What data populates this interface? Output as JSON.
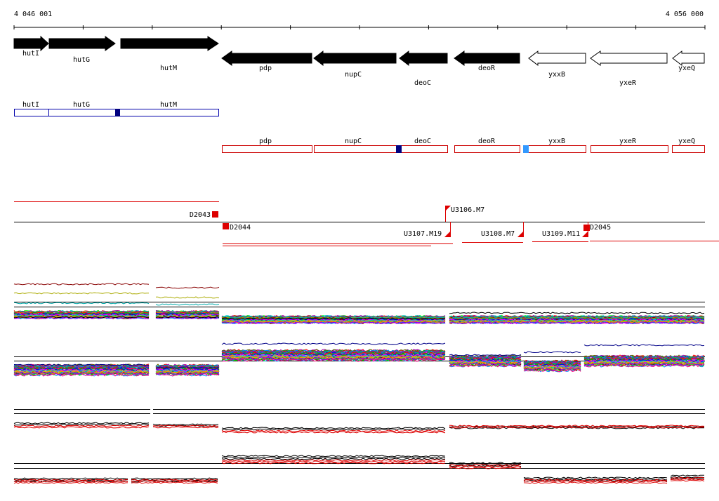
{
  "ruler": {
    "start_label": "4 046 001",
    "end_label": "4 056 000"
  },
  "genes": [
    {
      "name": "hutI",
      "strand": "+",
      "filled": true
    },
    {
      "name": "hutG",
      "strand": "+",
      "filled": true
    },
    {
      "name": "hutM",
      "strand": "+",
      "filled": true
    },
    {
      "name": "pdp",
      "strand": "-",
      "filled": true
    },
    {
      "name": "nupC",
      "strand": "-",
      "filled": true
    },
    {
      "name": "deoC",
      "strand": "-",
      "filled": true
    },
    {
      "name": "deoR",
      "strand": "-",
      "filled": true
    },
    {
      "name": "yxxB",
      "strand": "-",
      "filled": false
    },
    {
      "name": "yxeR",
      "strand": "-",
      "filled": false
    },
    {
      "name": "yxeQ",
      "strand": "-",
      "filled": false
    }
  ],
  "operons_top": [
    {
      "name": "hutI"
    },
    {
      "name": "hutG"
    },
    {
      "name": "hutM"
    }
  ],
  "operons_bottom": [
    {
      "name": "pdp"
    },
    {
      "name": "nupC"
    },
    {
      "name": "deoC"
    },
    {
      "name": "deoR"
    },
    {
      "name": "yxxB"
    },
    {
      "name": "yxeR"
    },
    {
      "name": "yxeQ"
    }
  ],
  "transcript_labels": [
    {
      "name": "D2043"
    },
    {
      "name": "D2044"
    },
    {
      "name": "U3106.M7"
    },
    {
      "name": "U3107.M19"
    },
    {
      "name": "U3108.M7"
    },
    {
      "name": "U3109.M11"
    },
    {
      "name": "D2045"
    }
  ],
  "colors": {
    "gene_fill": "#000000",
    "operon_top": "#0000aa",
    "operon_bottom": "#cc0000",
    "site_dark": "#000080",
    "site_light": "#3399ff",
    "transcript": "#dd0000"
  },
  "chart_data": [
    {
      "type": "line",
      "name": "expression-panel-1",
      "series_count": 40
    },
    {
      "type": "line",
      "name": "expression-panel-2",
      "series_count": 40
    },
    {
      "type": "line",
      "name": "expression-panel-3",
      "series_count": 4
    },
    {
      "type": "line",
      "name": "expression-panel-4",
      "series_count": 6
    }
  ]
}
